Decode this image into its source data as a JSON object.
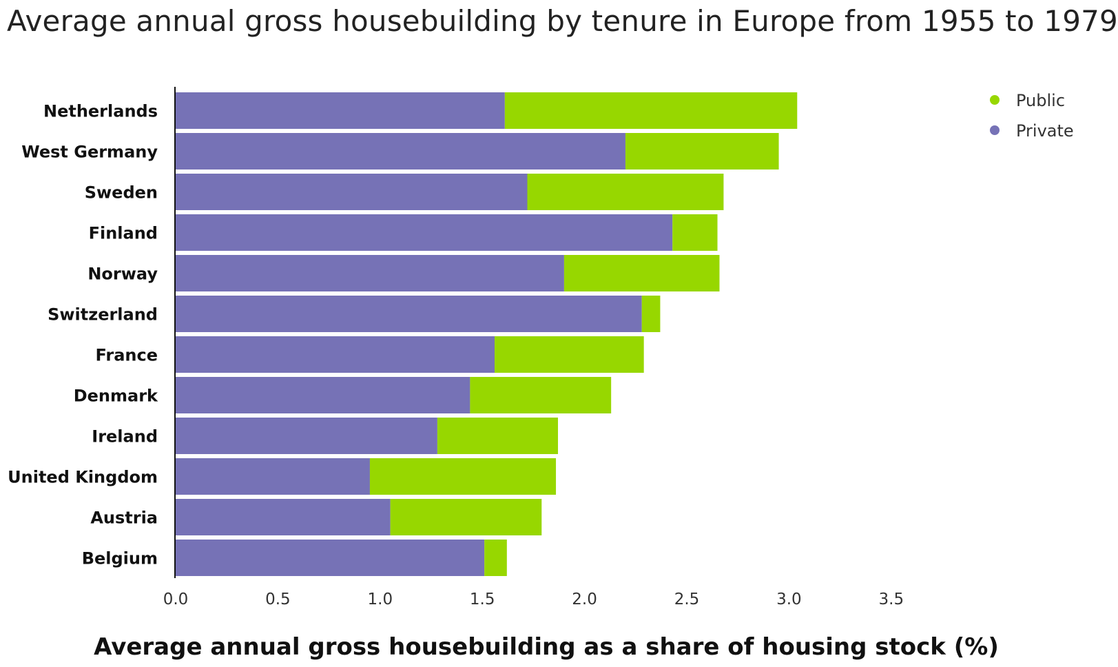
{
  "chart_data": {
    "type": "bar",
    "orientation": "horizontal",
    "stacked": true,
    "title": "Average annual gross housebuilding by tenure in Europe from 1955 to 1979",
    "xlabel": "Average annual gross housebuilding as a share of housing stock (%)",
    "ylabel": "",
    "xlim": [
      0,
      3.5
    ],
    "xticks": [
      "0.0",
      "0.5",
      "1.0",
      "1.5",
      "2.0",
      "2.5",
      "3.0",
      "3.5"
    ],
    "grid": false,
    "legend_position": "top-right",
    "categories": [
      "Netherlands",
      "West Germany",
      "Sweden",
      "Finland",
      "Norway",
      "Switzerland",
      "France",
      "Denmark",
      "Ireland",
      "United Kingdom",
      "Austria",
      "Belgium"
    ],
    "series": [
      {
        "name": "Private",
        "color": "#7672b6",
        "values": [
          1.61,
          2.2,
          1.72,
          2.43,
          1.9,
          2.28,
          1.56,
          1.44,
          1.28,
          0.95,
          1.05,
          1.51
        ]
      },
      {
        "name": "Public",
        "color": "#97d700",
        "values": [
          1.43,
          0.75,
          0.96,
          0.22,
          0.76,
          0.09,
          0.73,
          0.69,
          0.59,
          0.91,
          0.74,
          0.11
        ]
      }
    ],
    "legend_order": [
      "Public",
      "Private"
    ]
  }
}
